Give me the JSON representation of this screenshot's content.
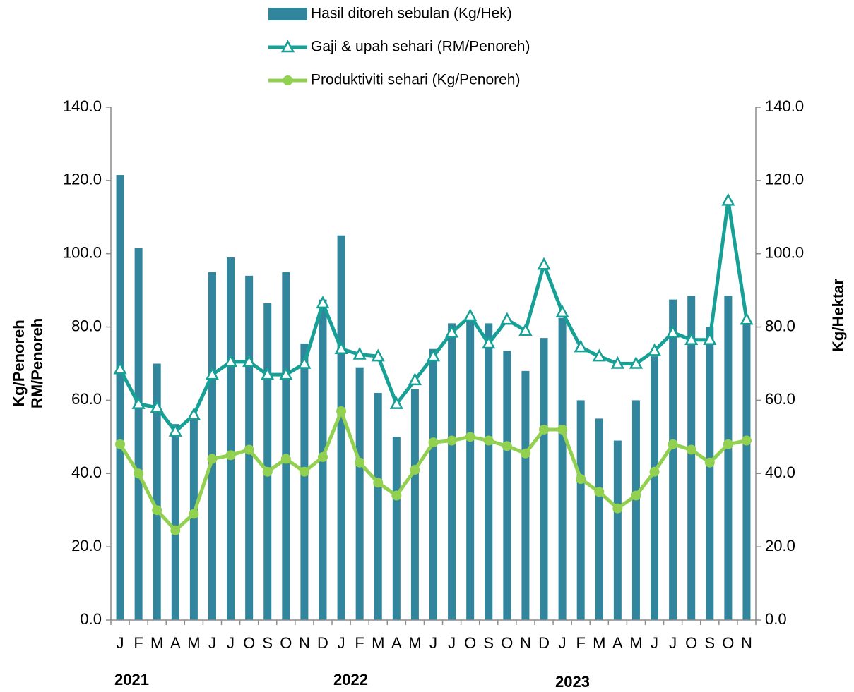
{
  "chart_data": {
    "type": "bar_line",
    "categories": [
      "J",
      "F",
      "M",
      "A",
      "M",
      "J",
      "J",
      "O",
      "S",
      "O",
      "N",
      "D",
      "J",
      "F",
      "M",
      "A",
      "M",
      "J",
      "J",
      "O",
      "S",
      "O",
      "N",
      "D",
      "J",
      "F",
      "M",
      "A",
      "M",
      "J",
      "J",
      "O",
      "S",
      "O",
      "N"
    ],
    "year_labels": [
      "2021",
      "2022",
      "2023"
    ],
    "ylabel": [
      "Kg/Penoreh",
      "RM/Penoreh"
    ],
    "y2label": "Kg/Hektar",
    "ylim": [
      0,
      140
    ],
    "yticks": [
      {
        "value": 0,
        "label": "0.0"
      },
      {
        "value": 20,
        "label": "20.0"
      },
      {
        "value": 40,
        "label": "40.0"
      },
      {
        "value": 60,
        "label": "60.0"
      },
      {
        "value": 80,
        "label": "80.0"
      },
      {
        "value": 100,
        "label": "100.0"
      },
      {
        "value": 120,
        "label": "120.0"
      },
      {
        "value": 140,
        "label": "140.0"
      }
    ],
    "y2lim": [
      0,
      140
    ],
    "y2ticks": [
      {
        "value": 0,
        "label": "0.0"
      },
      {
        "value": 20,
        "label": "20.0"
      },
      {
        "value": 40,
        "label": "40.0"
      },
      {
        "value": 60,
        "label": "60.0"
      },
      {
        "value": 80,
        "label": "80.0"
      },
      {
        "value": 100,
        "label": "100.0"
      },
      {
        "value": 120,
        "label": "120.0"
      },
      {
        "value": 140,
        "label": "140.0"
      }
    ],
    "series": [
      {
        "name": "Hasil ditoreh sebulan (Kg/Hek)",
        "type": "bar",
        "axis": "y2",
        "color": "#31859c",
        "values": [
          121.5,
          101.5,
          70,
          53.5,
          56,
          95,
          99,
          94,
          86.5,
          95,
          75.5,
          87.5,
          105,
          69,
          62,
          50,
          63,
          74,
          81,
          82,
          81,
          73.5,
          68,
          77,
          82.5,
          60,
          55,
          49,
          60,
          72,
          87.5,
          88.5,
          80,
          88.5,
          82
        ]
      },
      {
        "name": "Gaji & upah sehari (RM/Penoreh)",
        "type": "line",
        "marker": "triangle",
        "color": "#17a096",
        "values": [
          68.5,
          59,
          58,
          51.5,
          56,
          67,
          70.5,
          70.5,
          67,
          67,
          70,
          86.5,
          74,
          72.5,
          72,
          59,
          65.5,
          72,
          78.5,
          83,
          75.5,
          82,
          79,
          97,
          84,
          74.5,
          72,
          70,
          70,
          73.5,
          78.5,
          76.5,
          76.5,
          114.5,
          82
        ]
      },
      {
        "name": "Produktiviti sehari (Kg/Penoreh)",
        "type": "line",
        "marker": "circle",
        "color": "#92d050",
        "values": [
          48,
          40,
          30,
          24.5,
          29,
          44,
          45,
          46.5,
          40.5,
          44,
          40.5,
          44.5,
          57,
          43,
          37.5,
          34,
          41,
          48.5,
          49,
          50,
          49,
          47.5,
          45.5,
          52,
          52,
          38.5,
          35,
          30.5,
          34,
          40.5,
          48,
          46.5,
          43,
          48,
          49
        ]
      }
    ]
  }
}
